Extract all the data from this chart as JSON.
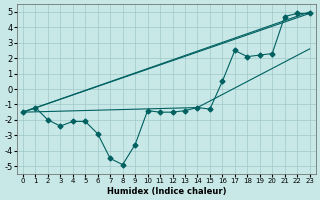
{
  "xlabel": "Humidex (Indice chaleur)",
  "ylabel": "",
  "xlim": [
    -0.5,
    23.5
  ],
  "ylim": [
    -5.5,
    5.5
  ],
  "yticks": [
    -5,
    -4,
    -3,
    -2,
    -1,
    0,
    1,
    2,
    3,
    4,
    5
  ],
  "xticks": [
    0,
    1,
    2,
    3,
    4,
    5,
    6,
    7,
    8,
    9,
    10,
    11,
    12,
    13,
    14,
    15,
    16,
    17,
    18,
    19,
    20,
    21,
    22,
    23
  ],
  "bg_color": "#c8e8e8",
  "line_color": "#006060",
  "grid_color": "#a0c8c8",
  "line1_x": [
    0,
    1,
    2,
    3,
    4,
    5,
    6,
    7,
    8,
    9,
    10,
    11,
    12,
    13,
    14,
    15,
    16,
    17,
    18,
    19,
    20,
    21,
    22,
    23
  ],
  "line1_y": [
    -1.5,
    -1.2,
    -2.0,
    -2.4,
    -2.1,
    -2.1,
    -2.9,
    -4.5,
    -4.9,
    -3.6,
    -1.4,
    -1.5,
    -1.5,
    -1.4,
    -1.2,
    -1.3,
    0.5,
    2.5,
    2.1,
    2.2,
    2.3,
    4.7,
    4.9,
    4.9
  ],
  "line2_x": [
    0,
    23
  ],
  "line2_y": [
    -1.5,
    4.9
  ],
  "line3_x": [
    0,
    23
  ],
  "line3_y": [
    -1.5,
    5.0
  ],
  "line4_x": [
    0,
    14,
    23
  ],
  "line4_y": [
    -1.5,
    -1.2,
    2.6
  ]
}
